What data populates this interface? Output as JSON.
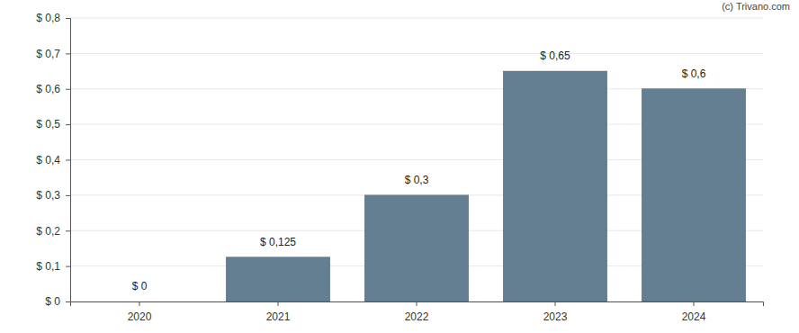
{
  "chart_data": {
    "type": "bar",
    "annotations": [
      "(c) Trivano.com"
    ],
    "categories": [
      "2020",
      "2021",
      "2022",
      "2023",
      "2024"
    ],
    "values": [
      0,
      0.125,
      0.3,
      0.65,
      0.6
    ],
    "value_labels": [
      "$ 0",
      "$ 0,125",
      "$ 0,3",
      "$ 0,65",
      "$ 0,6"
    ],
    "color": "#657f92",
    "ylim": [
      0,
      0.8
    ],
    "yticks": [
      {
        "value": 0,
        "label": "$ 0"
      },
      {
        "value": 0.1,
        "label": "$ 0,1"
      },
      {
        "value": 0.2,
        "label": "$ 0,2"
      },
      {
        "value": 0.3,
        "label": "$ 0,3"
      },
      {
        "value": 0.4,
        "label": "$ 0,4"
      },
      {
        "value": 0.5,
        "label": "$ 0,5"
      },
      {
        "value": 0.6,
        "label": "$ 0,6"
      },
      {
        "value": 0.7,
        "label": "$ 0,7"
      },
      {
        "value": 0.8,
        "label": "$ 0,8"
      }
    ],
    "grid": true,
    "data_labels": true
  }
}
